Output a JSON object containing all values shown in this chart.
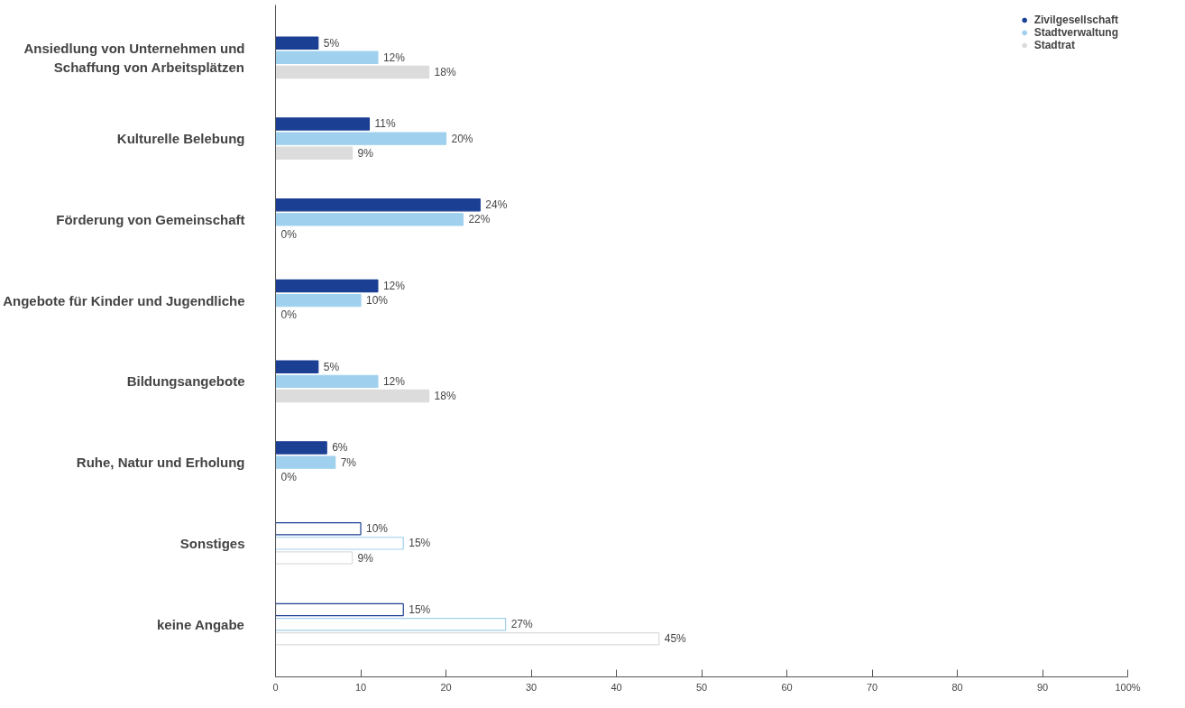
{
  "chart_data": {
    "type": "bar",
    "orientation": "horizontal",
    "categories": [
      "Ansiedlung von Unternehmen und Schaffung von Arbeitsplätzen",
      "Kulturelle Belebung",
      "Förderung von Gemeinschaft",
      "Angebote für Kinder und Jugendliche",
      "Bildungsangebote",
      "Ruhe, Natur und Erholung",
      "Sonstiges",
      "keine Angabe"
    ],
    "series": [
      {
        "name": "Zivilgesellschaft",
        "color": "#1b3f93",
        "colors": [
          "#1b3f93",
          "#1b3f93",
          "#1b3f93",
          "#1b3f93",
          "#1b3f93",
          "#1b3f93",
          "#ffffff",
          "#ffffff"
        ],
        "values": [
          5,
          11,
          24,
          12,
          5,
          6,
          10,
          15
        ],
        "value_labels": [
          "5%",
          "11%",
          "24%",
          "12%",
          "5%",
          "6%",
          "10%",
          "15%"
        ]
      },
      {
        "name": "Stadtverwaltung",
        "color": "#9fd0ee",
        "colors": [
          "#9fd0ee",
          "#9fd0ee",
          "#9fd0ee",
          "#9fd0ee",
          "#9fd0ee",
          "#9fd0ee",
          "#ffffff",
          "#ffffff"
        ],
        "values": [
          12,
          20,
          22,
          10,
          12,
          7,
          15,
          27
        ],
        "value_labels": [
          "12%",
          "20%",
          "22%",
          "10%",
          "12%",
          "7%",
          "15%",
          "27%"
        ]
      },
      {
        "name": "Stadtrat",
        "color": "#dcdcdc",
        "colors": [
          "#dcdcdc",
          "#dcdcdc",
          "#dcdcdc",
          "#dcdcdc",
          "#dcdcdc",
          "#dcdcdc",
          "#ffffff",
          "#ffffff"
        ],
        "values": [
          18,
          9,
          0,
          0,
          18,
          0,
          9,
          45
        ],
        "value_labels": [
          "18%",
          "9%",
          "0%",
          "0%",
          "18%",
          "0%",
          "9%",
          "45%"
        ]
      }
    ],
    "xlim": [
      0,
      100
    ],
    "xticks": [
      0,
      10,
      20,
      30,
      40,
      50,
      60,
      70,
      80,
      90,
      {
        "value": 100,
        "label": "100%"
      }
    ],
    "grid": false,
    "legend": "top right"
  }
}
